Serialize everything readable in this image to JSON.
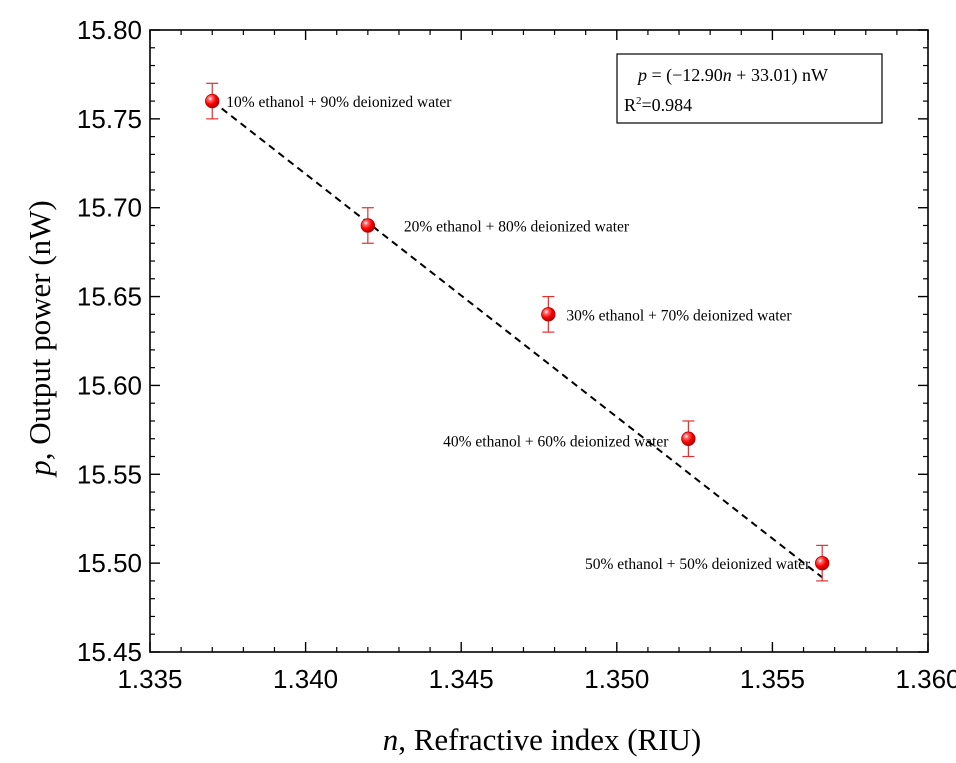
{
  "chart_data": {
    "type": "scatter",
    "title": "",
    "xlabel": {
      "var": "n",
      "text": ", Refractive index (RIU)"
    },
    "ylabel": {
      "var": "p",
      "text": ", Output power (nW)"
    },
    "xlim": [
      1.335,
      1.36
    ],
    "ylim": [
      15.45,
      15.8
    ],
    "x_ticks": [
      "1.335",
      "1.340",
      "1.345",
      "1.350",
      "1.355",
      "1.360"
    ],
    "y_ticks": [
      "15.45",
      "15.50",
      "15.55",
      "15.60",
      "15.65",
      "15.70",
      "15.75",
      "15.80"
    ],
    "grid": false,
    "points": [
      {
        "x": 1.337,
        "y": 15.76,
        "err": 0.01,
        "label": "10% ethanol + 90% deionized water"
      },
      {
        "x": 1.342,
        "y": 15.69,
        "err": 0.01,
        "label": "20% ethanol + 80% deionized water"
      },
      {
        "x": 1.3478,
        "y": 15.64,
        "err": 0.01,
        "label": "30% ethanol + 70% deionized water"
      },
      {
        "x": 1.3523,
        "y": 15.57,
        "err": 0.01,
        "label": "40% ethanol + 60% deionized water"
      },
      {
        "x": 1.3566,
        "y": 15.5,
        "err": 0.01,
        "label": "50% ethanol + 50% deionized water"
      }
    ],
    "fit": {
      "slope": -12.9,
      "intercept": 33.01,
      "x_range": [
        1.337,
        1.3566
      ]
    },
    "equation": {
      "p_var": "p",
      "lhs_eq": " = (−12.90",
      "n_var": "n",
      "rhs": " + 33.01) nW",
      "r2_base": "R",
      "r2_sup": "2",
      "r2_value": "=0.984"
    },
    "colors": {
      "marker": "#ff1a1a",
      "marker_edge": "#c00000",
      "errorbar": "#e03030",
      "fit": "#000000",
      "axis": "#000000"
    }
  }
}
